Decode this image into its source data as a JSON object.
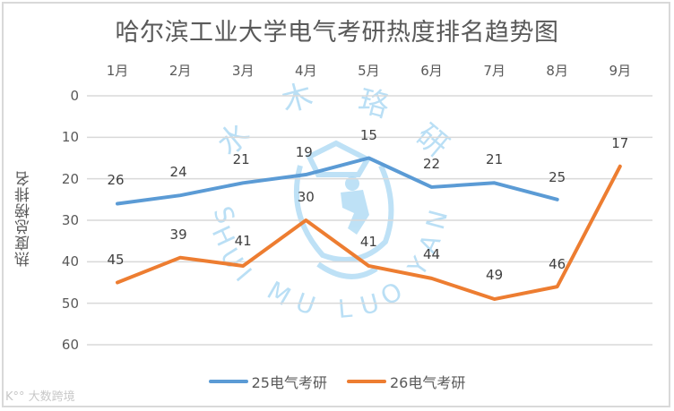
{
  "chart_data": {
    "type": "line",
    "title": "哈尔滨工业大学电气考研热度排名趋势图",
    "xlabel": "",
    "ylabel": "热度总榜排名",
    "categories": [
      "1月",
      "2月",
      "3月",
      "4月",
      "5月",
      "6月",
      "7月",
      "8月",
      "9月"
    ],
    "ylim": [
      0,
      60
    ],
    "y_inverted": true,
    "yticks": [
      0,
      10,
      20,
      30,
      40,
      50,
      60
    ],
    "grid": true,
    "legend_position": "bottom",
    "x_axis_position": "top",
    "series": [
      {
        "name": "25电气考研",
        "color": "#5b9bd5",
        "values": [
          26,
          24,
          21,
          19,
          15,
          22,
          21,
          25,
          null
        ]
      },
      {
        "name": "26电气考研",
        "color": "#ed7d31",
        "values": [
          45,
          39,
          41,
          30,
          41,
          44,
          49,
          46,
          17
        ]
      }
    ]
  },
  "watermark": {
    "text_cn": "水木珞研",
    "text_en": "SHUI MU LUO YAN"
  },
  "footer": {
    "logo_text": "大数跨境"
  }
}
